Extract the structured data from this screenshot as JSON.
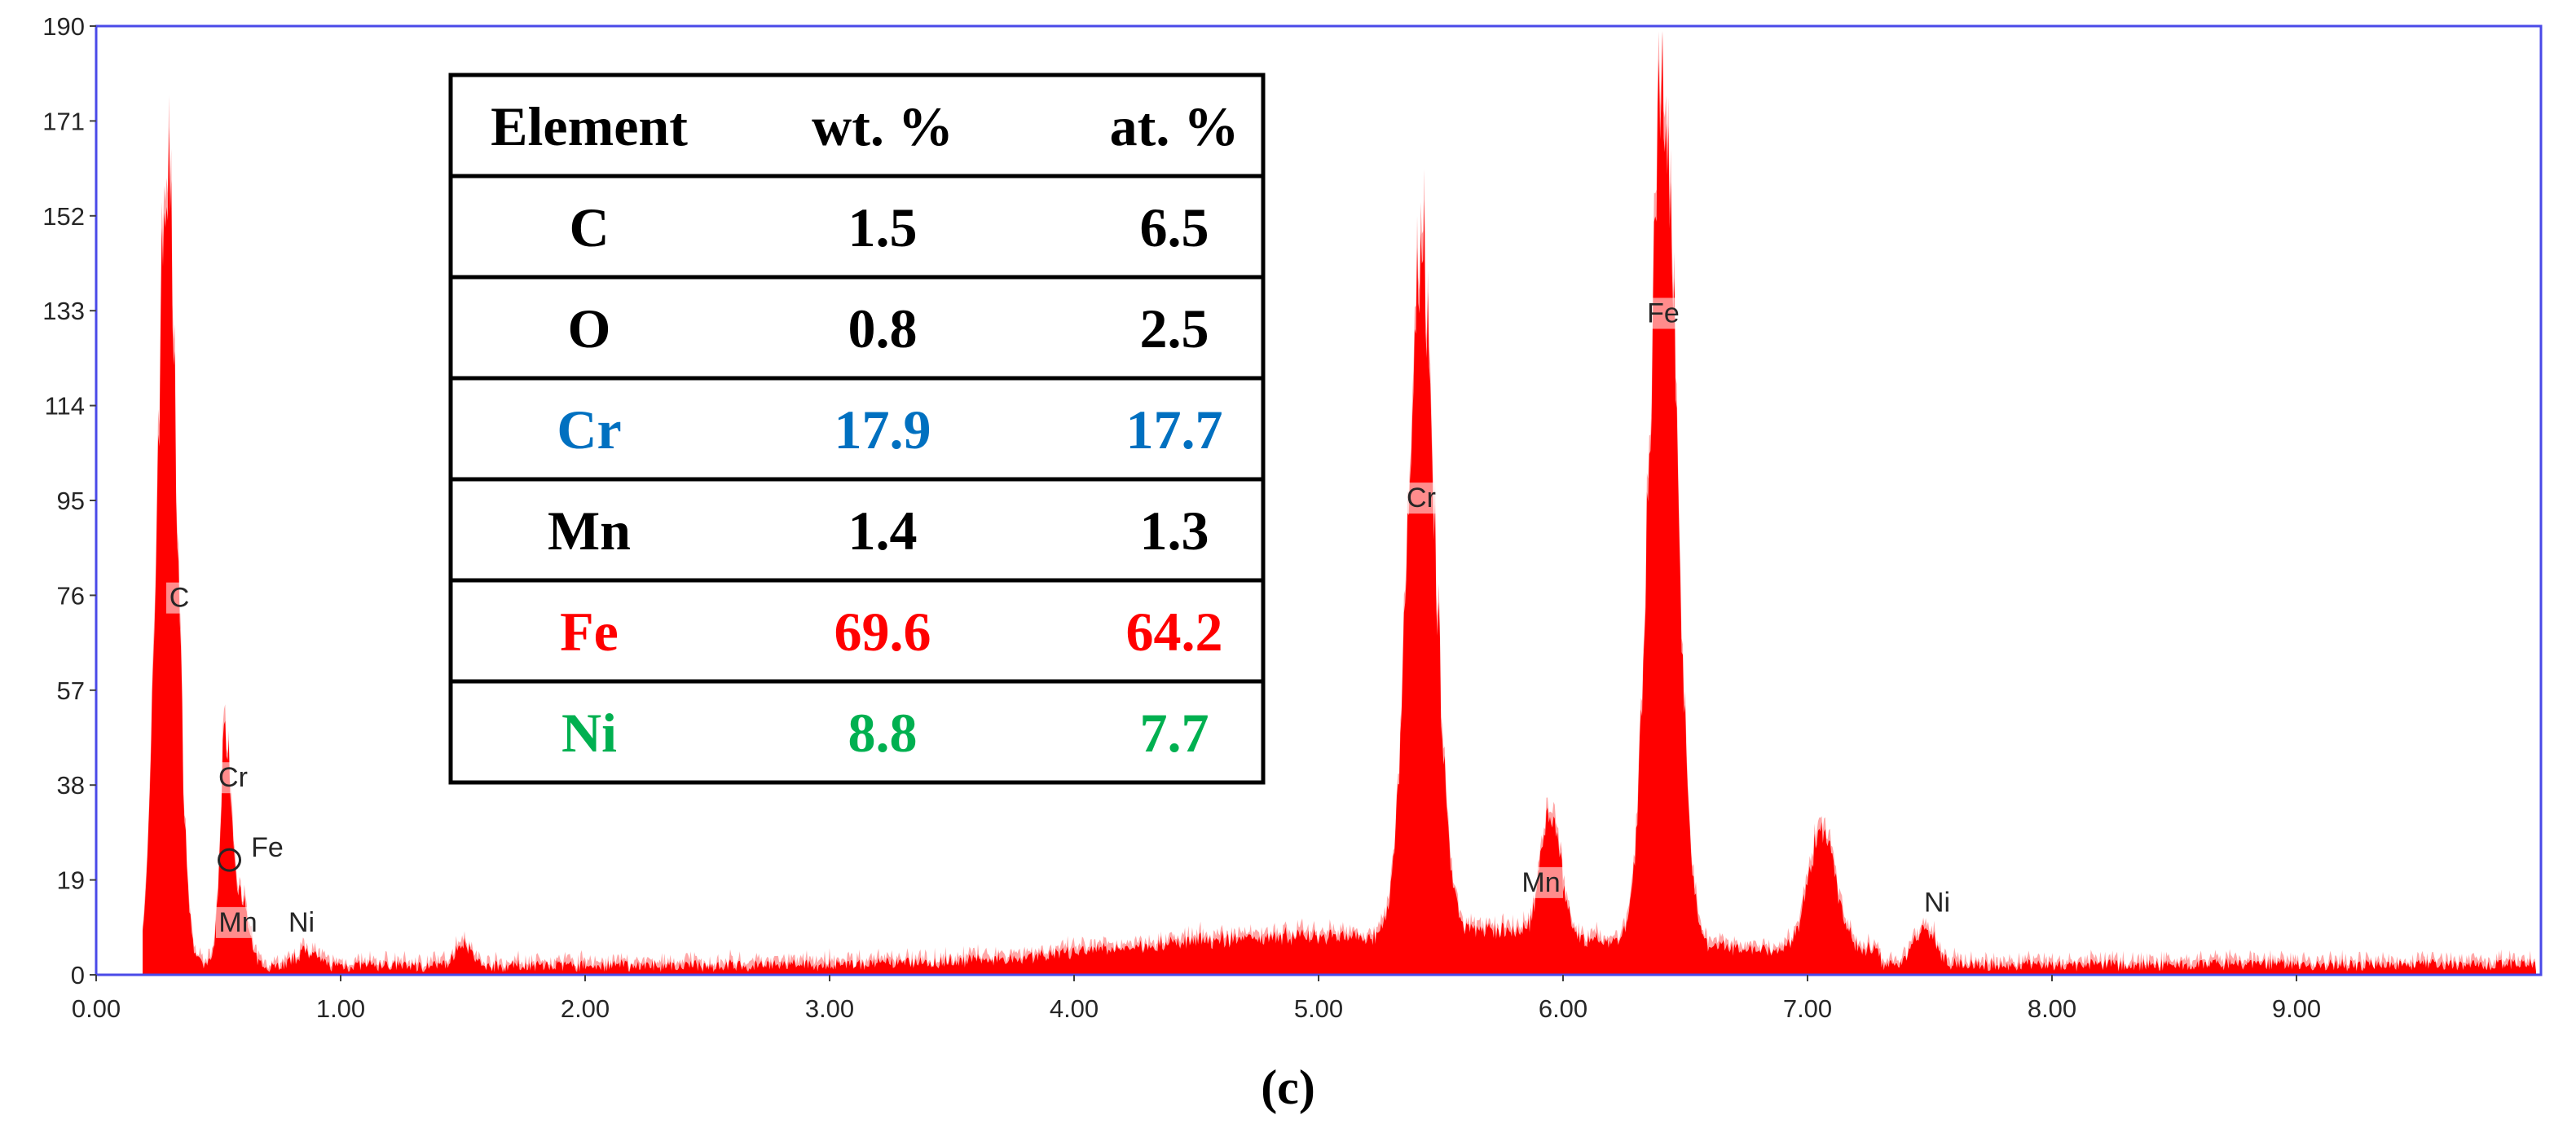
{
  "chart_data": {
    "type": "bar",
    "title": "",
    "xlabel": "",
    "ylabel": "",
    "xlim": [
      0,
      10
    ],
    "ylim": [
      0,
      190
    ],
    "x_ticks": [
      "0.00",
      "1.00",
      "2.00",
      "3.00",
      "4.00",
      "5.00",
      "6.00",
      "7.00",
      "8.00",
      "9.00"
    ],
    "y_ticks": [
      "0",
      "19",
      "38",
      "57",
      "76",
      "95",
      "114",
      "133",
      "152",
      "171",
      "190"
    ],
    "peaks": [
      {
        "x": 0.29,
        "height": 158,
        "width": 0.04
      },
      {
        "x": 0.53,
        "height": 46,
        "width": 0.022
      },
      {
        "x": 0.59,
        "height": 14,
        "width": 0.03
      },
      {
        "x": 0.86,
        "height": 3,
        "width": 0.04
      },
      {
        "x": 1.5,
        "height": 5,
        "width": 0.03
      },
      {
        "x": 5.42,
        "height": 136,
        "width": 0.055
      },
      {
        "x": 5.95,
        "height": 26,
        "width": 0.04
      },
      {
        "x": 6.41,
        "height": 172,
        "width": 0.055
      },
      {
        "x": 7.06,
        "height": 24,
        "width": 0.055
      },
      {
        "x": 7.48,
        "height": 7,
        "width": 0.045
      }
    ],
    "peak_labels": [
      {
        "text": "C",
        "x": 0.34,
        "y": 74
      },
      {
        "text": "Cr",
        "x": 0.56,
        "y": 38
      },
      {
        "text": "Fe",
        "x": 0.7,
        "y": 24
      },
      {
        "text": "Mn",
        "x": 0.58,
        "y": 9
      },
      {
        "text": "Ni",
        "x": 0.84,
        "y": 9
      },
      {
        "text": "Cr",
        "x": 5.42,
        "y": 94
      },
      {
        "text": "Mn",
        "x": 5.91,
        "y": 17
      },
      {
        "text": "Fe",
        "x": 6.41,
        "y": 131
      },
      {
        "text": "Ni",
        "x": 7.53,
        "y": 13
      }
    ],
    "circle_marker": {
      "x": 0.545,
      "y": 23
    },
    "table": {
      "headers": [
        "Element",
        "wt. %",
        "at. %"
      ],
      "rows": [
        {
          "element": "C",
          "wt": "1.5",
          "at": "6.5",
          "color": "#000000"
        },
        {
          "element": "O",
          "wt": "0.8",
          "at": "2.5",
          "color": "#000000"
        },
        {
          "element": "Cr",
          "wt": "17.9",
          "at": "17.7",
          "color": "#0070C0"
        },
        {
          "element": "Mn",
          "wt": "1.4",
          "at": "1.3",
          "color": "#000000"
        },
        {
          "element": "Fe",
          "wt": "69.6",
          "at": "64.2",
          "color": "#FF0000"
        },
        {
          "element": "Ni",
          "wt": "8.8",
          "at": "7.7",
          "color": "#00B050"
        }
      ]
    }
  },
  "caption": "(c)",
  "colors": {
    "spectrum_fill": "#FF0000",
    "spectrum_light": "#FF8080",
    "frame": "#4A4AE8"
  }
}
